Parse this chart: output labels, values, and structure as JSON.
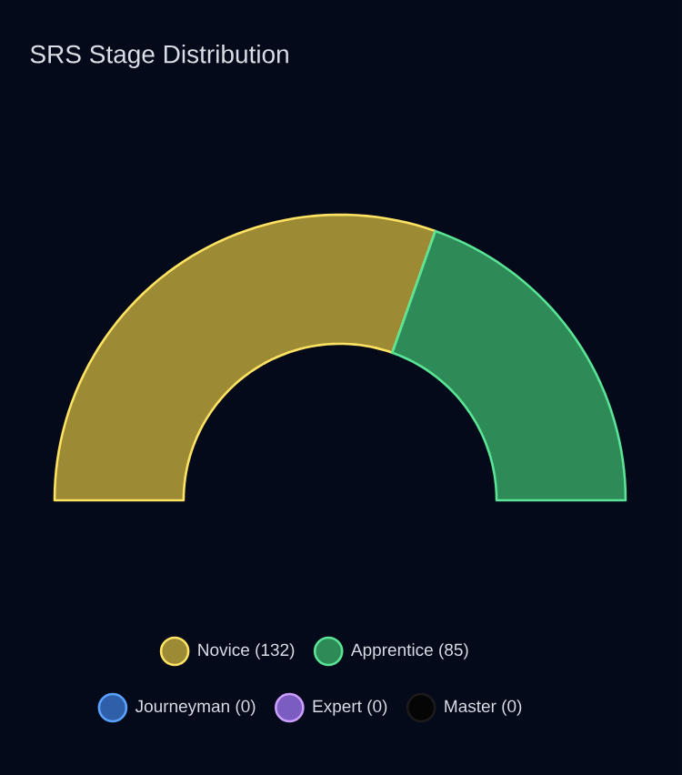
{
  "chart_data": {
    "type": "donut",
    "title": "SRS Stage Distribution",
    "categories": [
      "Novice (132)",
      "Apprentice (85)",
      "Journeyman (0)",
      "Expert (0)",
      "Master (0)"
    ],
    "values": [
      132,
      85,
      0,
      0,
      0
    ],
    "colors": [
      "#9c8a35",
      "#2e8b57",
      "#2f5fa8",
      "#7b5cc0",
      "#050505"
    ],
    "legend": "bottom"
  }
}
